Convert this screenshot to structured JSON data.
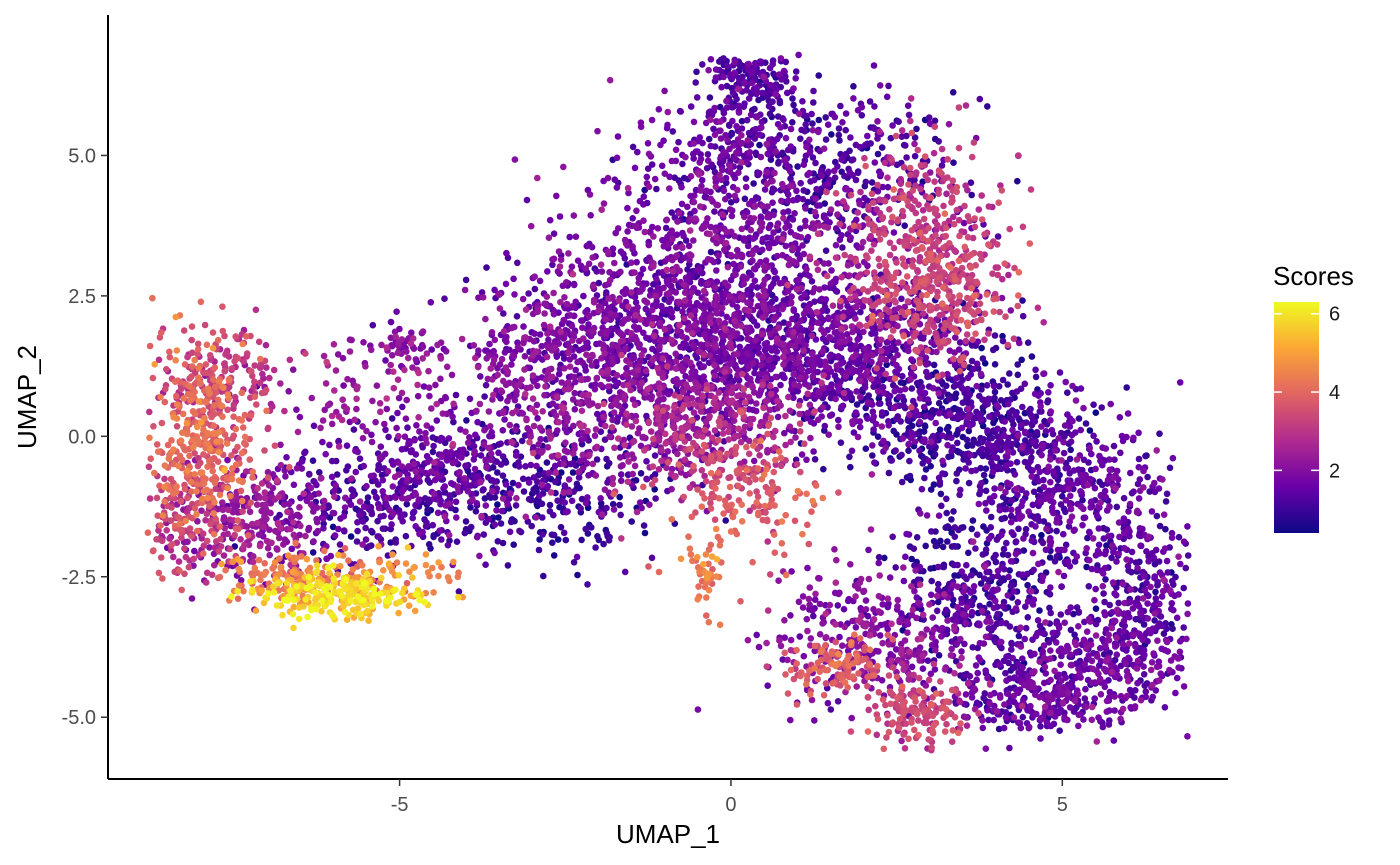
{
  "chart_data": {
    "type": "scatter",
    "title": "",
    "xlabel": "UMAP_1",
    "ylabel": "UMAP_2",
    "xlim": [
      -9.4,
      7.5
    ],
    "ylim": [
      -6.1,
      7.5
    ],
    "x_ticks": [
      -5,
      0,
      5
    ],
    "x_tick_labels": [
      "-5",
      "0",
      "5"
    ],
    "y_ticks": [
      -5,
      -2.5,
      0,
      2.5,
      5
    ],
    "y_tick_labels": [
      "-5.0",
      "-2.5",
      "0.0",
      "2.5",
      "5.0"
    ],
    "grid": false,
    "color_scale": {
      "title": "Scores",
      "palette": "plasma",
      "range": [
        0.4,
        6.3
      ],
      "ticks": [
        2,
        4,
        6
      ],
      "tick_labels": [
        "2",
        "4",
        "6"
      ],
      "colors": [
        "#0d0887",
        "#6a00a8",
        "#b12a90",
        "#e16462",
        "#fca636",
        "#f0f921"
      ]
    },
    "legend_position": "right",
    "approx_point_count": 9000,
    "regions": [
      {
        "cx": 0.3,
        "cy": 6.4,
        "sx": 0.35,
        "sy": 0.25,
        "n": 150,
        "score": 1.3
      },
      {
        "cx": 0.1,
        "cy": 5.2,
        "sx": 0.6,
        "sy": 0.5,
        "n": 200,
        "score": 1.5
      },
      {
        "cx": 1.5,
        "cy": 4.8,
        "sx": 1.0,
        "sy": 0.7,
        "n": 350,
        "score": 1.2
      },
      {
        "cx": 0.0,
        "cy": 3.5,
        "sx": 1.2,
        "sy": 0.9,
        "n": 500,
        "score": 1.8
      },
      {
        "cx": 2.8,
        "cy": 3.5,
        "sx": 0.6,
        "sy": 0.9,
        "n": 350,
        "score": 3.1
      },
      {
        "cx": 3.2,
        "cy": 2.5,
        "sx": 0.55,
        "sy": 0.6,
        "n": 250,
        "score": 3.3
      },
      {
        "cx": -1.0,
        "cy": 2.2,
        "sx": 1.2,
        "sy": 0.7,
        "n": 500,
        "score": 1.7
      },
      {
        "cx": 0.2,
        "cy": 1.5,
        "sx": 1.5,
        "sy": 0.8,
        "n": 1000,
        "score": 1.6
      },
      {
        "cx": 1.8,
        "cy": 1.5,
        "sx": 1.0,
        "sy": 0.7,
        "n": 450,
        "score": 1.5
      },
      {
        "cx": 3.2,
        "cy": 0.3,
        "sx": 0.8,
        "sy": 0.6,
        "n": 400,
        "score": 1.0
      },
      {
        "cx": 4.5,
        "cy": -0.3,
        "sx": 0.7,
        "sy": 0.6,
        "n": 300,
        "score": 1.3
      },
      {
        "cx": 5.5,
        "cy": -1.3,
        "sx": 0.7,
        "sy": 0.6,
        "n": 250,
        "score": 1.5
      },
      {
        "cx": -0.2,
        "cy": 0.2,
        "sx": 0.7,
        "sy": 0.5,
        "n": 250,
        "score": 2.6
      },
      {
        "cx": 0.0,
        "cy": -0.8,
        "sx": 0.6,
        "sy": 0.5,
        "n": 120,
        "score": 3.6
      },
      {
        "cx": 0.4,
        "cy": -1.5,
        "sx": 0.5,
        "sy": 0.5,
        "n": 60,
        "score": 3.9
      },
      {
        "cx": -0.4,
        "cy": -2.5,
        "sx": 0.12,
        "sy": 0.35,
        "n": 40,
        "score": 4.4
      },
      {
        "cx": -1.8,
        "cy": 0.2,
        "sx": 1.0,
        "sy": 0.8,
        "n": 300,
        "score": 2.2
      },
      {
        "cx": -2.7,
        "cy": 1.2,
        "sx": 0.8,
        "sy": 0.8,
        "n": 250,
        "score": 1.9
      },
      {
        "cx": -3.0,
        "cy": -1.0,
        "sx": 1.0,
        "sy": 0.6,
        "n": 350,
        "score": 1.0
      },
      {
        "cx": -4.3,
        "cy": -0.5,
        "sx": 0.7,
        "sy": 0.6,
        "n": 220,
        "score": 1.6
      },
      {
        "cx": -5.3,
        "cy": 0.8,
        "sx": 0.7,
        "sy": 0.6,
        "n": 100,
        "score": 2.3
      },
      {
        "cx": -5.0,
        "cy": 1.6,
        "sx": 0.2,
        "sy": 0.15,
        "n": 40,
        "score": 2.0
      },
      {
        "cx": -5.5,
        "cy": -1.2,
        "sx": 0.8,
        "sy": 0.6,
        "n": 300,
        "score": 1.3
      },
      {
        "cx": -7.2,
        "cy": -1.5,
        "sx": 0.6,
        "sy": 0.5,
        "n": 280,
        "score": 2.2
      },
      {
        "cx": -8.0,
        "cy": 0.0,
        "sx": 0.4,
        "sy": 0.9,
        "n": 350,
        "score": 4.0
      },
      {
        "cx": -7.7,
        "cy": 1.0,
        "sx": 0.5,
        "sy": 0.4,
        "n": 150,
        "score": 3.0
      },
      {
        "cx": -8.2,
        "cy": -1.6,
        "sx": 0.35,
        "sy": 0.5,
        "n": 120,
        "score": 3.2
      },
      {
        "cx": -6.8,
        "cy": -2.5,
        "sx": 0.5,
        "sy": 0.25,
        "n": 120,
        "score": 4.3
      },
      {
        "cx": -6.0,
        "cy": -2.8,
        "sx": 0.6,
        "sy": 0.2,
        "n": 220,
        "score": 5.8
      },
      {
        "cx": -5.2,
        "cy": -2.5,
        "sx": 0.5,
        "sy": 0.25,
        "n": 80,
        "score": 4.6
      },
      {
        "cx": 2.2,
        "cy": -3.6,
        "sx": 0.8,
        "sy": 0.6,
        "n": 350,
        "score": 2.0
      },
      {
        "cx": 1.6,
        "cy": -4.1,
        "sx": 0.35,
        "sy": 0.25,
        "n": 120,
        "score": 3.7
      },
      {
        "cx": 2.8,
        "cy": -4.9,
        "sx": 0.35,
        "sy": 0.3,
        "n": 150,
        "score": 3.3
      },
      {
        "cx": 3.8,
        "cy": -2.8,
        "sx": 0.7,
        "sy": 0.9,
        "n": 450,
        "score": 1.1
      },
      {
        "cx": 4.5,
        "cy": -4.7,
        "sx": 0.6,
        "sy": 0.35,
        "n": 200,
        "score": 1.5
      },
      {
        "cx": 5.7,
        "cy": -4.0,
        "sx": 0.7,
        "sy": 0.6,
        "n": 350,
        "score": 1.6
      },
      {
        "cx": 6.2,
        "cy": -2.8,
        "sx": 0.4,
        "sy": 0.7,
        "n": 180,
        "score": 1.3
      }
    ]
  }
}
